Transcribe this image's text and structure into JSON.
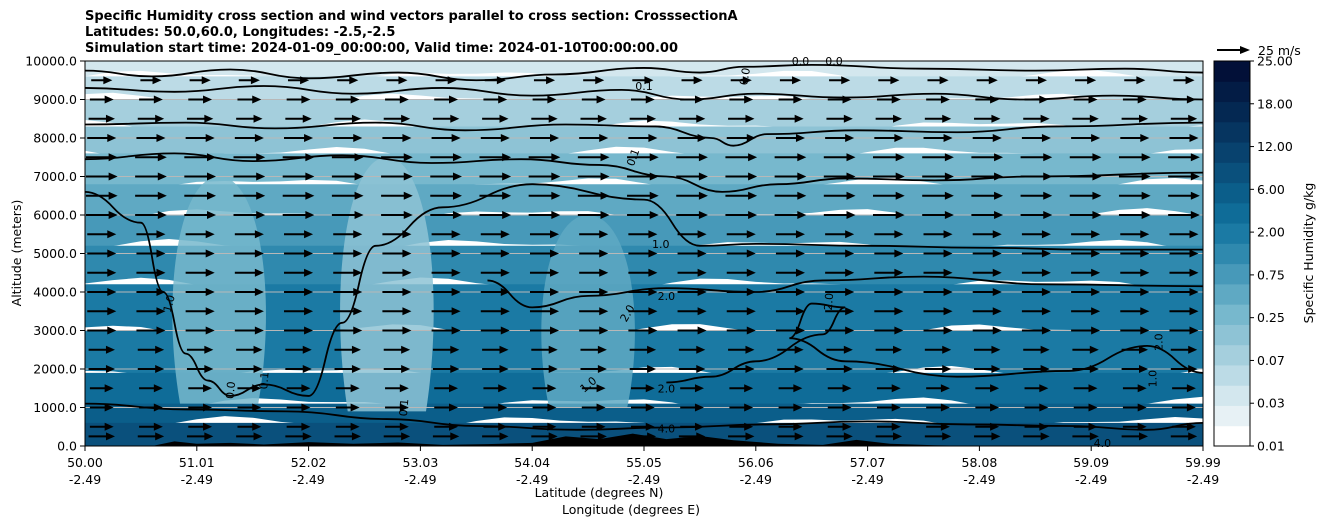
{
  "title": {
    "line1": "Specific Humidity cross section and wind vectors parallel to cross section: CrosssectionA",
    "line2": "Latitudes: 50.0,60.0, Longitudes: -2.5,-2.5",
    "line3": "Simulation start time: 2024-01-09_00:00:00, Valid time: 2024-01-10T00:00:00.00"
  },
  "chart_data": {
    "type": "contour-cross-section",
    "title": "Specific Humidity cross section and wind vectors parallel to cross section: CrosssectionA",
    "ylabel": "Altitude (meters)",
    "xlabel_line1": "Latitude (degrees N)",
    "xlabel_line2": "Longitude (degrees E)",
    "ylim": [
      0,
      10000
    ],
    "xlim": [
      0,
      10
    ],
    "y_ticks": [
      {
        "value": 0,
        "label": "0.0"
      },
      {
        "value": 1000,
        "label": "1000.0"
      },
      {
        "value": 2000,
        "label": "2000.0"
      },
      {
        "value": 3000,
        "label": "3000.0"
      },
      {
        "value": 4000,
        "label": "4000.0"
      },
      {
        "value": 5000,
        "label": "5000.0"
      },
      {
        "value": 6000,
        "label": "6000.0"
      },
      {
        "value": 7000,
        "label": "7000.0"
      },
      {
        "value": 8000,
        "label": "8000.0"
      },
      {
        "value": 9000,
        "label": "9000.0"
      },
      {
        "value": 10000,
        "label": "10000.0"
      }
    ],
    "x_ticks": [
      {
        "value": 0,
        "lat": "50.00",
        "lon": "-2.49"
      },
      {
        "value": 1,
        "lat": "51.01",
        "lon": "-2.49"
      },
      {
        "value": 2,
        "lat": "52.02",
        "lon": "-2.49"
      },
      {
        "value": 3,
        "lat": "53.03",
        "lon": "-2.49"
      },
      {
        "value": 4,
        "lat": "54.04",
        "lon": "-2.49"
      },
      {
        "value": 5,
        "lat": "55.05",
        "lon": "-2.49"
      },
      {
        "value": 6,
        "lat": "56.06",
        "lon": "-2.49"
      },
      {
        "value": 7,
        "lat": "57.07",
        "lon": "-2.49"
      },
      {
        "value": 8,
        "lat": "58.08",
        "lon": "-2.49"
      },
      {
        "value": 9,
        "lat": "59.09",
        "lon": "-2.49"
      },
      {
        "value": 10,
        "lat": "59.99",
        "lon": "-2.49"
      }
    ],
    "colorbar": {
      "label": "Specific Humidity g/kg",
      "tick_labels": [
        "0.01",
        "0.03",
        "0.07",
        "0.25",
        "0.75",
        "2.00",
        "6.00",
        "12.00",
        "18.00",
        "25.00"
      ],
      "colors": [
        "#ffffff",
        "#e7f1f5",
        "#d3e7ee",
        "#bcdbe6",
        "#a5cfdd",
        "#8ec3d5",
        "#77b8cd",
        "#5fa9c3",
        "#4799b9",
        "#2f89ae",
        "#1b7aa4",
        "#0f6c98",
        "#0b5e8a",
        "#0a507c",
        "#08426e",
        "#063560",
        "#042852",
        "#031c45",
        "#021038"
      ]
    },
    "humidity_bands": [
      {
        "z_top": 10000,
        "level": 2
      },
      {
        "z_top": 9600,
        "level": 3
      },
      {
        "z_top": 9000,
        "level": 4
      },
      {
        "z_top": 8300,
        "level": 5
      },
      {
        "z_top": 7600,
        "level": 6
      },
      {
        "z_top": 6800,
        "level": 7
      },
      {
        "z_top": 6000,
        "level": 8
      },
      {
        "z_top": 5200,
        "level": 9
      },
      {
        "z_top": 4200,
        "level": 10
      },
      {
        "z_top": 3000,
        "level": 10
      },
      {
        "z_top": 1900,
        "level": 11
      },
      {
        "z_top": 1100,
        "level": 12
      },
      {
        "z_top": 600,
        "level": 13
      }
    ],
    "dry_plume": [
      {
        "x": 1.2,
        "z_bottom": 1100,
        "z_top": 7000,
        "level": 6
      },
      {
        "x": 2.7,
        "z_bottom": 900,
        "z_top": 7500,
        "level": 5
      },
      {
        "x": 4.5,
        "z_bottom": 1000,
        "z_top": 6000,
        "level": 7
      }
    ],
    "contour_lines": [
      {
        "label": "0.0",
        "points": [
          [
            0,
            9750
          ],
          [
            0.6,
            9600
          ],
          [
            1.3,
            9780
          ],
          [
            2.0,
            9550
          ],
          [
            2.8,
            9700
          ],
          [
            3.5,
            9500
          ],
          [
            4.2,
            9650
          ],
          [
            5.0,
            9820
          ],
          [
            5.5,
            9700
          ],
          [
            5.9,
            9850
          ],
          [
            6.5,
            9900
          ],
          [
            7.5,
            9800
          ],
          [
            8.5,
            9750
          ],
          [
            9.3,
            9800
          ],
          [
            10,
            9700
          ]
        ]
      },
      {
        "label": "0.1",
        "points": [
          [
            0,
            9300
          ],
          [
            0.8,
            9200
          ],
          [
            1.6,
            9350
          ],
          [
            2.4,
            9150
          ],
          [
            3.2,
            9300
          ],
          [
            4.0,
            9100
          ],
          [
            4.8,
            9250
          ],
          [
            5.4,
            9000
          ],
          [
            6.0,
            9150
          ],
          [
            6.8,
            9050
          ],
          [
            7.6,
            9150
          ],
          [
            8.4,
            9000
          ],
          [
            9.2,
            9100
          ],
          [
            10,
            9000
          ]
        ]
      },
      {
        "label": "0.1",
        "points": [
          [
            0,
            8350
          ],
          [
            0.9,
            8400
          ],
          [
            1.7,
            8250
          ],
          [
            2.6,
            8400
          ],
          [
            3.4,
            8200
          ],
          [
            4.3,
            8350
          ],
          [
            5.1,
            8300
          ],
          [
            5.6,
            8000
          ],
          [
            5.8,
            7800
          ],
          [
            6.1,
            8100
          ],
          [
            6.9,
            8200
          ],
          [
            7.8,
            8150
          ],
          [
            8.7,
            8300
          ],
          [
            10,
            8400
          ]
        ]
      },
      {
        "label": "0.5",
        "points": [
          [
            0,
            7450
          ],
          [
            0.8,
            7600
          ],
          [
            1.5,
            7400
          ],
          [
            2.3,
            7550
          ],
          [
            3.1,
            7350
          ],
          [
            3.9,
            7450
          ],
          [
            4.6,
            7300
          ],
          [
            5.2,
            7000
          ],
          [
            5.7,
            6600
          ],
          [
            6.2,
            6800
          ],
          [
            6.8,
            6950
          ],
          [
            7.6,
            6900
          ],
          [
            8.5,
            7000
          ],
          [
            10,
            7100
          ]
        ]
      },
      {
        "label": "1.0",
        "points": [
          [
            0,
            6600
          ],
          [
            0.5,
            5800
          ],
          [
            0.7,
            4000
          ],
          [
            0.9,
            2400
          ],
          [
            1.1,
            1700
          ],
          [
            1.3,
            1300
          ],
          [
            1.6,
            1600
          ],
          [
            2.0,
            1300
          ],
          [
            2.3,
            3200
          ],
          [
            2.6,
            5200
          ],
          [
            3.2,
            6200
          ],
          [
            4.0,
            6800
          ],
          [
            5.0,
            6400
          ],
          [
            5.5,
            5200
          ],
          [
            6.0,
            5250
          ],
          [
            7.0,
            5200
          ],
          [
            8.0,
            5150
          ],
          [
            9.0,
            5100
          ],
          [
            10,
            5100
          ]
        ]
      },
      {
        "label": "2.0",
        "points": [
          [
            3.6,
            4300
          ],
          [
            4.0,
            3600
          ],
          [
            4.5,
            3900
          ],
          [
            5.2,
            4100
          ],
          [
            6.0,
            4000
          ],
          [
            6.6,
            4300
          ],
          [
            7.5,
            4400
          ],
          [
            8.6,
            4200
          ],
          [
            10,
            4150
          ]
        ]
      },
      {
        "label": "2.0",
        "points": [
          [
            5.2,
            1650
          ],
          [
            5.6,
            1800
          ],
          [
            6.0,
            2200
          ],
          [
            6.6,
            2900
          ],
          [
            6.8,
            3600
          ],
          [
            6.5,
            3700
          ],
          [
            6.3,
            2800
          ],
          [
            6.8,
            2200
          ],
          [
            7.8,
            1800
          ],
          [
            8.8,
            1950
          ],
          [
            9.5,
            2600
          ],
          [
            10,
            1900
          ]
        ]
      },
      {
        "label": "4.0",
        "points": [
          [
            0,
            1100
          ],
          [
            0.9,
            950
          ],
          [
            1.8,
            900
          ],
          [
            2.7,
            700
          ],
          [
            3.5,
            520
          ],
          [
            4.4,
            420
          ],
          [
            5.2,
            480
          ],
          [
            6.1,
            560
          ],
          [
            7.0,
            640
          ],
          [
            7.9,
            560
          ],
          [
            8.8,
            520
          ],
          [
            9.5,
            420
          ],
          [
            10,
            600
          ]
        ]
      }
    ],
    "contour_label_marks": [
      {
        "x": 5.0,
        "z": 9350,
        "text": "0.1",
        "rotate": 0
      },
      {
        "x": 5.9,
        "z": 9600,
        "text": "0.0",
        "rotate": -80
      },
      {
        "x": 6.4,
        "z": 10000,
        "text": "0.0",
        "rotate": 0
      },
      {
        "x": 6.7,
        "z": 10000,
        "text": "0.0",
        "rotate": 0
      },
      {
        "x": 4.9,
        "z": 7500,
        "text": "0.1",
        "rotate": -70
      },
      {
        "x": 5.15,
        "z": 5250,
        "text": "1.0",
        "rotate": 0
      },
      {
        "x": 0.75,
        "z": 3700,
        "text": "1.0",
        "rotate": -75
      },
      {
        "x": 4.85,
        "z": 3450,
        "text": "2.0",
        "rotate": -60
      },
      {
        "x": 5.2,
        "z": 3900,
        "text": "2.0",
        "rotate": 0
      },
      {
        "x": 6.65,
        "z": 3750,
        "text": "2.0",
        "rotate": -85
      },
      {
        "x": 5.2,
        "z": 1500,
        "text": "2.0",
        "rotate": 0
      },
      {
        "x": 4.5,
        "z": 1600,
        "text": "1.0",
        "rotate": -40
      },
      {
        "x": 9.6,
        "z": 2700,
        "text": "2.0",
        "rotate": -90
      },
      {
        "x": 9.55,
        "z": 1750,
        "text": "1.0",
        "rotate": -90
      },
      {
        "x": 5.2,
        "z": 450,
        "text": "4.0",
        "rotate": 0
      },
      {
        "x": 9.1,
        "z": 80,
        "text": "4.0",
        "rotate": 0
      },
      {
        "x": 1.6,
        "z": 1700,
        "text": "0.1",
        "rotate": -85
      },
      {
        "x": 1.3,
        "z": 1450,
        "text": "0.0",
        "rotate": -85
      },
      {
        "x": 2.85,
        "z": 1000,
        "text": "0.1",
        "rotate": -85
      }
    ],
    "terrain": [
      [
        0,
        0
      ],
      [
        0.6,
        0
      ],
      [
        0.8,
        120
      ],
      [
        1.0,
        60
      ],
      [
        1.3,
        80
      ],
      [
        1.6,
        40
      ],
      [
        2.0,
        100
      ],
      [
        2.4,
        60
      ],
      [
        2.8,
        90
      ],
      [
        3.2,
        30
      ],
      [
        3.6,
        50
      ],
      [
        4.0,
        80
      ],
      [
        4.3,
        250
      ],
      [
        4.6,
        180
      ],
      [
        4.9,
        320
      ],
      [
        5.2,
        180
      ],
      [
        5.5,
        260
      ],
      [
        5.8,
        150
      ],
      [
        6.2,
        60
      ],
      [
        6.6,
        30
      ],
      [
        6.9,
        160
      ],
      [
        7.2,
        60
      ],
      [
        7.6,
        20
      ],
      [
        8.0,
        0
      ],
      [
        10,
        0
      ]
    ],
    "wind": {
      "reference_label": "25 m/s",
      "reference_speed": 25,
      "rows_z": [
        250,
        500,
        1000,
        1500,
        2000,
        2500,
        3000,
        3500,
        4000,
        4500,
        5000,
        5500,
        6000,
        6500,
        7000,
        7500,
        8000,
        8500,
        9000,
        9500
      ],
      "columns_x": [
        0.15,
        0.59,
        1.03,
        1.47,
        1.91,
        2.35,
        2.79,
        3.23,
        3.67,
        4.11,
        4.55,
        4.99,
        5.43,
        5.87,
        6.31,
        6.75,
        7.19,
        7.63,
        8.07,
        8.51,
        8.95,
        9.39,
        9.83
      ],
      "speed_by_level_ms": [
        20,
        18,
        18,
        18,
        20,
        20,
        22,
        22,
        22,
        22,
        22,
        22,
        24,
        24,
        24,
        24,
        22,
        20,
        18,
        16
      ]
    }
  }
}
